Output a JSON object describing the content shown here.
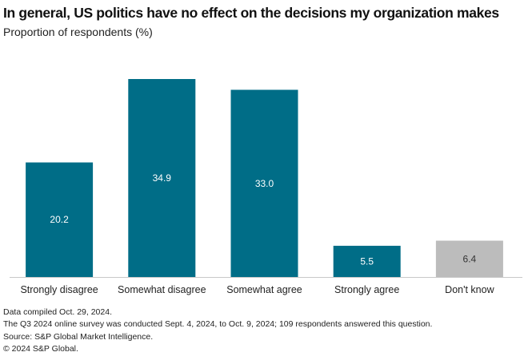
{
  "chart_data": {
    "type": "bar",
    "title": "In general, US politics have no effect on the decisions my organization makes",
    "subtitle": "Proportion of respondents (%)",
    "xlabel": "",
    "ylabel": "Proportion of respondents (%)",
    "categories": [
      "Strongly disagree",
      "Somewhat disagree",
      "Somewhat agree",
      "Strongly agree",
      "Don't know"
    ],
    "values": [
      20.2,
      34.9,
      33.0,
      5.5,
      6.4
    ],
    "data_labels": [
      "20.2",
      "34.9",
      "33.0",
      "5.5",
      "6.4"
    ],
    "colors": [
      "#006d87",
      "#006d87",
      "#006d87",
      "#006d87",
      "#bcbcbc"
    ],
    "label_colors": [
      "#ffffff",
      "#ffffff",
      "#ffffff",
      "#ffffff",
      "#333333"
    ],
    "ylim": [
      0,
      35
    ],
    "grid": false,
    "legend": "none"
  },
  "footnotes": [
    "Data compiled Oct. 29, 2024.",
    "The Q3 2024 online survey was conducted Sept. 4, 2024, to Oct. 9, 2024; 109 respondents answered this question.",
    "Source: S&P Global Market Intelligence.",
    "© 2024 S&P Global."
  ]
}
